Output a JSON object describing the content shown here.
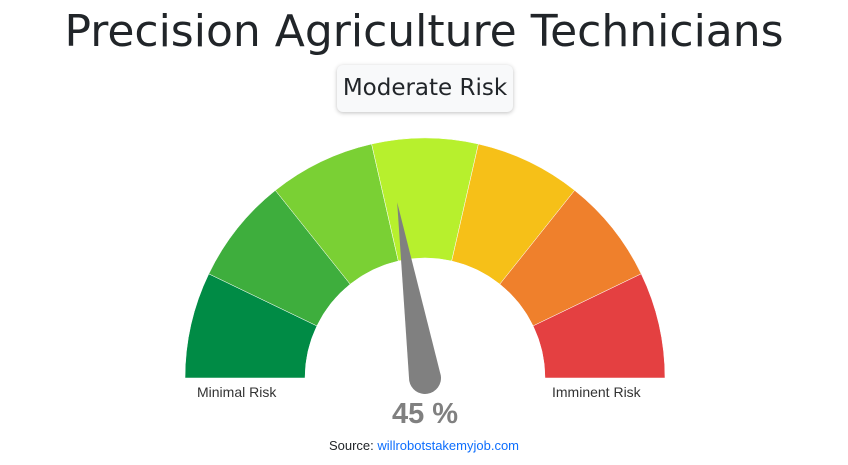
{
  "page": {
    "title": "Precision Agriculture Technicians",
    "risk_label": "Moderate Risk",
    "source_prefix": "Source:",
    "source_link_text": "willrobotstakemyjob.com"
  },
  "chart_data": {
    "type": "gauge",
    "value": 45,
    "value_display": "45 %",
    "min": 0,
    "max": 100,
    "min_label": "Minimal Risk",
    "max_label": "Imminent Risk",
    "bands": [
      {
        "from": 0,
        "to": 14.29,
        "color": "#008b45"
      },
      {
        "from": 14.29,
        "to": 28.57,
        "color": "#3eae3d"
      },
      {
        "from": 28.57,
        "to": 42.86,
        "color": "#7ad034"
      },
      {
        "from": 42.86,
        "to": 57.14,
        "color": "#b7f02d"
      },
      {
        "from": 57.14,
        "to": 71.43,
        "color": "#f6c018"
      },
      {
        "from": 71.43,
        "to": 85.71,
        "color": "#ef802c"
      },
      {
        "from": 85.71,
        "to": 100,
        "color": "#e44041"
      }
    ],
    "needle_color": "#808080"
  }
}
